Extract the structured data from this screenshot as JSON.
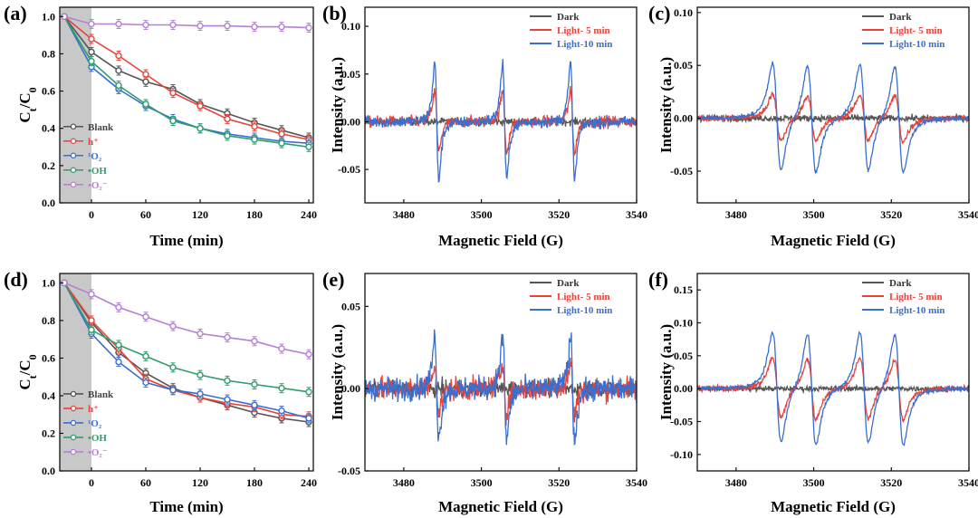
{
  "chart_data": [
    {
      "panel": "(a)",
      "type": "line",
      "xlabel": "Time (min)",
      "ylabel": "C_t/C_0",
      "xlim": [
        -35,
        245
      ],
      "ylim": [
        0.0,
        1.05
      ],
      "xticks": [
        0,
        60,
        120,
        180,
        240
      ],
      "yticks": [
        0.0,
        0.2,
        0.4,
        0.6,
        0.8,
        1.0
      ],
      "shaded_region": [
        -35,
        0
      ],
      "legend_position": "bottom-left",
      "series": [
        {
          "name": "Blank",
          "color": "#555555",
          "x": [
            -30,
            0,
            30,
            60,
            90,
            120,
            150,
            180,
            210,
            240
          ],
          "y": [
            1.0,
            0.81,
            0.71,
            0.65,
            0.61,
            0.53,
            0.48,
            0.43,
            0.39,
            0.35
          ]
        },
        {
          "name": "h⁺",
          "color": "#e8433a",
          "x": [
            -30,
            0,
            30,
            60,
            90,
            120,
            150,
            180,
            210,
            240
          ],
          "y": [
            1.0,
            0.88,
            0.79,
            0.69,
            0.59,
            0.52,
            0.45,
            0.41,
            0.37,
            0.34
          ]
        },
        {
          "name": "¹O₂",
          "color": "#3a6fd0",
          "x": [
            -30,
            0,
            30,
            60,
            90,
            120,
            150,
            180,
            210,
            240
          ],
          "y": [
            1.0,
            0.73,
            0.61,
            0.52,
            0.45,
            0.4,
            0.37,
            0.35,
            0.33,
            0.32
          ]
        },
        {
          "name": "•OH",
          "color": "#2e9e6b",
          "x": [
            -30,
            0,
            30,
            60,
            90,
            120,
            150,
            180,
            210,
            240
          ],
          "y": [
            1.0,
            0.76,
            0.63,
            0.53,
            0.44,
            0.4,
            0.36,
            0.34,
            0.32,
            0.3
          ]
        },
        {
          "name": "•O₂⁻",
          "color": "#b57fd6",
          "x": [
            -30,
            0,
            30,
            60,
            90,
            120,
            150,
            180,
            210,
            240
          ],
          "y": [
            1.0,
            0.96,
            0.96,
            0.955,
            0.955,
            0.95,
            0.95,
            0.945,
            0.945,
            0.94
          ]
        }
      ]
    },
    {
      "panel": "(b)",
      "type": "line",
      "xlabel": "Magnetic Field (G)",
      "ylabel": "Intensity (a.u.)",
      "xlim": [
        3470,
        3540
      ],
      "ylim": [
        -0.085,
        0.12
      ],
      "xticks": [
        3480,
        3500,
        3520,
        3540
      ],
      "yticks": [
        -0.05,
        0.0,
        0.05,
        0.1
      ],
      "ytick_labels": [
        "-0.05",
        "0.00",
        "0.05",
        "0.10"
      ],
      "legend_position": "top-right",
      "signal": {
        "kind": "triplet",
        "line_centers": [
          3488.5,
          3506.0,
          3523.5
        ],
        "line_width": 0.9
      },
      "series": [
        {
          "name": "Dark",
          "color": "#555555",
          "amplitude": 0.0,
          "noise": 0.004
        },
        {
          "name": "Light- 5  min",
          "color": "#e8433a",
          "amplitude": 0.037,
          "noise": 0.006
        },
        {
          "name": "Light-10 min",
          "color": "#3a6fd0",
          "amplitude": 0.072,
          "noise": 0.006
        }
      ]
    },
    {
      "panel": "(c)",
      "type": "line",
      "xlabel": "Magnetic Field (G)",
      "ylabel": "Intensity (a.u.)",
      "xlim": [
        3470,
        3540
      ],
      "ylim": [
        -0.08,
        0.105
      ],
      "xticks": [
        3480,
        3500,
        3520,
        3540
      ],
      "yticks": [
        -0.05,
        0.0,
        0.05,
        0.1
      ],
      "ytick_labels": [
        "-0.05",
        "0.00",
        "0.05",
        "0.10"
      ],
      "legend_position": "top-right",
      "signal": {
        "kind": "quartet",
        "line_centers": [
          3490.5,
          3499.5,
          3513.0,
          3522.0
        ],
        "line_width": 1.9
      },
      "series": [
        {
          "name": "Dark",
          "color": "#555555",
          "amplitude": 0.0,
          "noise": 0.003
        },
        {
          "name": "Light- 5  min",
          "color": "#e8433a",
          "amplitude": 0.026,
          "noise": 0.003
        },
        {
          "name": "Light-10 min",
          "color": "#3a6fd0",
          "amplitude": 0.06,
          "noise": 0.002
        }
      ]
    },
    {
      "panel": "(d)",
      "type": "line",
      "xlabel": "Time (min)",
      "ylabel": "C_t/C_0",
      "xlim": [
        -35,
        245
      ],
      "ylim": [
        0.0,
        1.05
      ],
      "xticks": [
        0,
        60,
        120,
        180,
        240
      ],
      "yticks": [
        0.0,
        0.2,
        0.4,
        0.6,
        0.8,
        1.0
      ],
      "shaded_region": [
        -35,
        0
      ],
      "legend_position": "bottom-left",
      "series": [
        {
          "name": "Blank",
          "color": "#555555",
          "x": [
            -30,
            0,
            30,
            60,
            90,
            120,
            150,
            180,
            210,
            240
          ],
          "y": [
            1.0,
            0.79,
            0.63,
            0.52,
            0.44,
            0.39,
            0.35,
            0.31,
            0.28,
            0.26
          ]
        },
        {
          "name": "h⁺",
          "color": "#e8433a",
          "x": [
            -30,
            0,
            30,
            60,
            90,
            120,
            150,
            180,
            210,
            240
          ],
          "y": [
            1.0,
            0.8,
            0.65,
            0.49,
            0.43,
            0.39,
            0.36,
            0.34,
            0.3,
            0.29
          ]
        },
        {
          "name": "¹O₂",
          "color": "#3a6fd0",
          "x": [
            -30,
            0,
            30,
            60,
            90,
            120,
            150,
            180,
            210,
            240
          ],
          "y": [
            1.0,
            0.73,
            0.58,
            0.47,
            0.43,
            0.41,
            0.38,
            0.35,
            0.32,
            0.28
          ]
        },
        {
          "name": "•OH",
          "color": "#2e9e6b",
          "x": [
            -30,
            0,
            30,
            60,
            90,
            120,
            150,
            180,
            210,
            240
          ],
          "y": [
            1.0,
            0.75,
            0.67,
            0.61,
            0.55,
            0.51,
            0.48,
            0.46,
            0.44,
            0.42
          ]
        },
        {
          "name": "•O₂⁻",
          "color": "#b57fd6",
          "x": [
            -30,
            0,
            30,
            60,
            90,
            120,
            150,
            180,
            210,
            240
          ],
          "y": [
            1.0,
            0.94,
            0.87,
            0.82,
            0.77,
            0.73,
            0.71,
            0.69,
            0.65,
            0.62
          ]
        }
      ]
    },
    {
      "panel": "(e)",
      "type": "line",
      "xlabel": "Magnetic Field (G)",
      "ylabel": "Intensity (a.u.)",
      "xlim": [
        3470,
        3540
      ],
      "ylim": [
        -0.05,
        0.07
      ],
      "xticks": [
        3480,
        3500,
        3520,
        3540
      ],
      "yticks": [
        -0.05,
        0.0,
        0.05
      ],
      "ytick_labels": [
        "-0.05",
        "0.00",
        "0.05"
      ],
      "legend_position": "top-right",
      "signal": {
        "kind": "triplet",
        "line_centers": [
          3488.5,
          3506.0,
          3523.5
        ],
        "line_width": 0.9
      },
      "series": [
        {
          "name": "Dark",
          "color": "#555555",
          "amplitude": 0.0,
          "noise": 0.005
        },
        {
          "name": "Light- 5  min",
          "color": "#e8433a",
          "amplitude": 0.018,
          "noise": 0.007
        },
        {
          "name": "Light-10 min",
          "color": "#3a6fd0",
          "amplitude": 0.037,
          "noise": 0.007
        }
      ]
    },
    {
      "panel": "(f)",
      "type": "line",
      "xlabel": "Magnetic Field (G)",
      "ylabel": "Intensity (a.u.)",
      "xlim": [
        3470,
        3540
      ],
      "ylim": [
        -0.125,
        0.175
      ],
      "xticks": [
        3480,
        3500,
        3520,
        3540
      ],
      "yticks": [
        -0.1,
        -0.05,
        0.0,
        0.05,
        0.1,
        0.15
      ],
      "ytick_labels": [
        "-0.10",
        "-0.05",
        "0.00",
        "0.05",
        "0.10",
        "0.15"
      ],
      "legend_position": "top-right",
      "signal": {
        "kind": "quartet",
        "line_centers": [
          3490.5,
          3499.5,
          3513.0,
          3522.0
        ],
        "line_width": 1.9
      },
      "series": [
        {
          "name": "Dark",
          "color": "#555555",
          "amplitude": 0.0,
          "noise": 0.004
        },
        {
          "name": "Light- 5  min",
          "color": "#e8433a",
          "amplitude": 0.055,
          "noise": 0.004
        },
        {
          "name": "Light-10 min",
          "color": "#3a6fd0",
          "amplitude": 0.1,
          "noise": 0.003
        }
      ]
    }
  ]
}
